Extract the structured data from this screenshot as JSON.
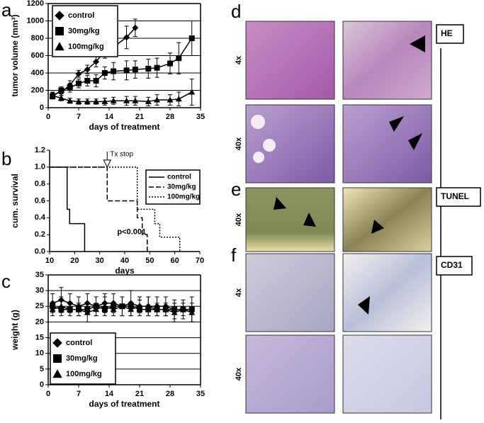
{
  "chart_data": [
    {
      "type": "line",
      "ylabel": "tumor volume (mm³)",
      "xlabel": "days of treatment",
      "xlim": [
        0,
        35
      ],
      "xticks": [
        0,
        7,
        14,
        21,
        28,
        35
      ],
      "ylim": [
        0,
        1200
      ],
      "yticks": [
        0,
        200,
        400,
        600,
        800,
        1000,
        1200
      ],
      "grid": true,
      "frame": true,
      "legend": "upper left",
      "color": "#000000",
      "series": [
        {
          "name": "control",
          "marker": "diamond",
          "line_style": "solid",
          "x": [
            1,
            3,
            5,
            7,
            9,
            11,
            13,
            15,
            18,
            20
          ],
          "values": [
            150,
            180,
            260,
            390,
            440,
            530,
            650,
            700,
            810,
            920
          ],
          "errors": [
            30,
            40,
            50,
            40,
            50,
            60,
            80,
            100,
            130,
            100
          ]
        },
        {
          "name": "30mg/kg",
          "marker": "square",
          "line_style": "solid",
          "x": [
            1,
            3,
            5,
            7,
            9,
            11,
            13,
            15,
            18,
            20,
            23,
            25,
            28,
            30,
            33
          ],
          "values": [
            130,
            200,
            230,
            280,
            310,
            310,
            400,
            420,
            430,
            440,
            450,
            460,
            510,
            570,
            800
          ],
          "errors": [
            30,
            40,
            50,
            50,
            60,
            70,
            70,
            100,
            110,
            100,
            110,
            110,
            120,
            180,
            200
          ]
        },
        {
          "name": "100mg/kg",
          "marker": "triangle",
          "line_style": "solid",
          "x": [
            1,
            3,
            5,
            7,
            9,
            11,
            13,
            15,
            18,
            20,
            23,
            25,
            28,
            30,
            33
          ],
          "values": [
            140,
            110,
            80,
            70,
            70,
            70,
            70,
            80,
            80,
            80,
            70,
            90,
            90,
            100,
            180
          ],
          "errors": [
            30,
            30,
            30,
            30,
            30,
            30,
            40,
            40,
            50,
            50,
            50,
            60,
            60,
            80,
            150
          ]
        }
      ]
    },
    {
      "type": "line",
      "ylabel": "cum. survival",
      "xlabel": "days",
      "xlim": [
        10,
        70
      ],
      "xticks": [
        10,
        20,
        30,
        40,
        50,
        60,
        70
      ],
      "ylim": [
        0,
        1.2
      ],
      "yticks": [
        {
          "value": 0,
          "label": "0.0"
        },
        0.2,
        0.4,
        0.6,
        0.8,
        {
          "value": 1,
          "label": "1.0"
        },
        1.2
      ],
      "grid": false,
      "frame": false,
      "legend": "upper right",
      "color": "#000000",
      "annotations": [
        "Tx stop",
        "p<0.001"
      ],
      "series": [
        {
          "name": "control",
          "line_style": "solid",
          "x": [
            10,
            17,
            17,
            18,
            18,
            24,
            24
          ],
          "values": [
            1,
            1,
            0.5,
            0.5,
            0.33,
            0.33,
            0
          ]
        },
        {
          "name": "30mg/kg",
          "line_style": "dashed",
          "x": [
            10,
            33,
            33,
            45,
            45,
            47,
            47,
            49,
            49
          ],
          "values": [
            1,
            1,
            0.6,
            0.6,
            0.4,
            0.4,
            0.2,
            0.2,
            0
          ]
        },
        {
          "name": "100mg/kg",
          "line_style": "dotted",
          "x": [
            10,
            45,
            45,
            52,
            52,
            54,
            54,
            62,
            62
          ],
          "values": [
            1,
            1,
            0.5,
            0.5,
            0.33,
            0.33,
            0.17,
            0.17,
            0
          ]
        }
      ]
    },
    {
      "type": "line",
      "ylabel": "weight (g)",
      "xlabel": "days of treatment",
      "xlim": [
        0,
        35
      ],
      "xticks": [
        0,
        7,
        14,
        21,
        28,
        35
      ],
      "ylim": [
        0,
        35
      ],
      "yticks": [
        0,
        5,
        10,
        15,
        20,
        25,
        30,
        35
      ],
      "grid": true,
      "frame": true,
      "legend": "lower left",
      "color": "#000000",
      "series": [
        {
          "name": "control",
          "marker": "diamond",
          "line_style": "solid",
          "x": [
            1,
            3,
            5,
            7,
            9,
            11,
            13,
            15,
            17,
            19,
            21,
            23,
            25,
            27,
            29,
            31,
            33
          ],
          "values": [
            26,
            27,
            26,
            25,
            26,
            25,
            26,
            26,
            25,
            26,
            25,
            25,
            25,
            25,
            24,
            24,
            24
          ],
          "errors": [
            3,
            4,
            3,
            3,
            3,
            3,
            3,
            3,
            3,
            4,
            3,
            3,
            3,
            3,
            3,
            3,
            4
          ]
        },
        {
          "name": "30mg/kg",
          "marker": "square",
          "line_style": "solid",
          "x": [
            1,
            3,
            5,
            7,
            9,
            11,
            13,
            15,
            17,
            19,
            21,
            23,
            25,
            27,
            29,
            31,
            33
          ],
          "values": [
            25,
            24,
            24,
            24,
            24,
            25,
            24,
            25,
            25,
            25,
            24,
            24,
            24,
            24,
            24,
            24,
            24
          ]
        },
        {
          "name": "100mg/kg",
          "marker": "triangle",
          "line_style": "solid",
          "x": [
            1,
            3,
            5,
            7,
            9,
            11,
            13,
            15,
            17,
            19,
            21,
            23,
            25,
            27,
            29,
            31,
            33
          ],
          "values": [
            24,
            25,
            24,
            24,
            23,
            24,
            25,
            24,
            25,
            24,
            25,
            25,
            24,
            24,
            23,
            24,
            23
          ],
          "errors": [
            2,
            3,
            2,
            2,
            3,
            2,
            3,
            2,
            3,
            2,
            2,
            3,
            2,
            2,
            3,
            2,
            3
          ]
        }
      ]
    }
  ],
  "figure": {
    "panel_labels": [
      "a",
      "b",
      "c",
      "d",
      "e",
      "f"
    ],
    "stain_labels": [
      "HE",
      "TUNEL",
      "CD31"
    ],
    "magnification_labels": [
      "4x",
      "40x",
      "40x",
      "4x",
      "40x"
    ]
  }
}
